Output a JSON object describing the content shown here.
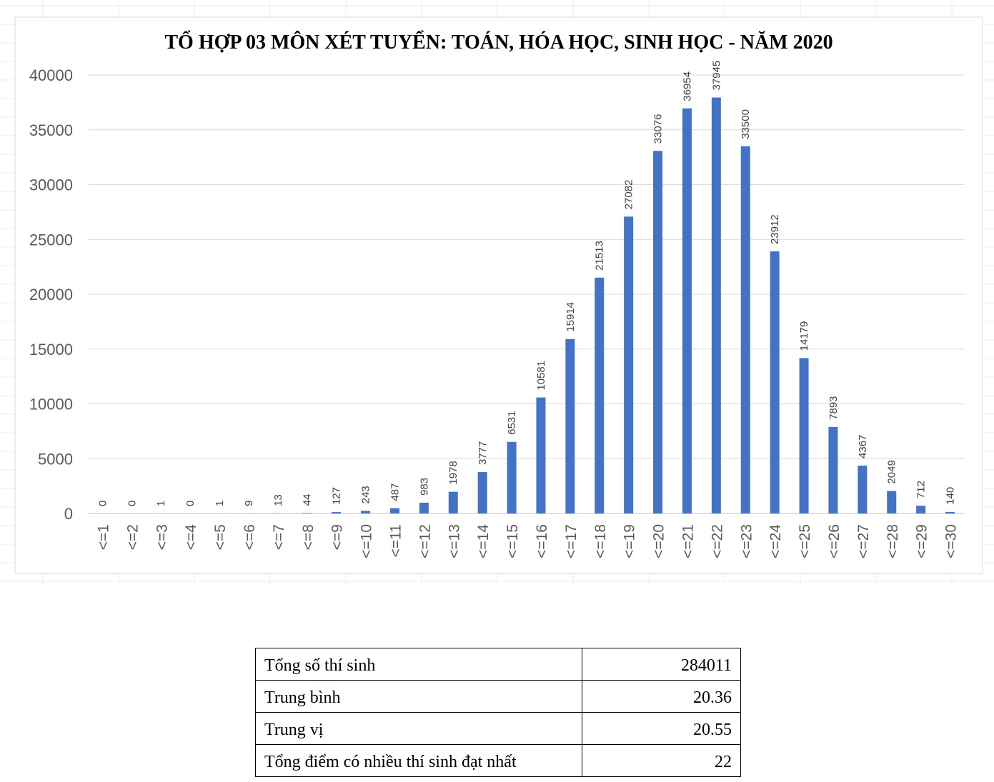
{
  "chart_data": {
    "type": "bar",
    "title": "TỔ HỢP 03 MÔN XÉT TUYỂN: TOÁN, HÓA HỌC, SINH HỌC - NĂM 2020",
    "xlabel": "",
    "ylabel": "",
    "categories": [
      "<=1",
      "<=2",
      "<=3",
      "<=4",
      "<=5",
      "<=6",
      "<=7",
      "<=8",
      "<=9",
      "<=10",
      "<=11",
      "<=12",
      "<=13",
      "<=14",
      "<=15",
      "<=16",
      "<=17",
      "<=18",
      "<=19",
      "<=20",
      "<=21",
      "<=22",
      "<=23",
      "<=24",
      "<=25",
      "<=26",
      "<=27",
      "<=28",
      "<=29",
      "<=30"
    ],
    "values": [
      0,
      0,
      1,
      0,
      1,
      9,
      13,
      44,
      127,
      243,
      487,
      983,
      1978,
      3777,
      6531,
      10581,
      15914,
      21513,
      27082,
      33076,
      36954,
      37945,
      33500,
      23912,
      14179,
      7893,
      4367,
      2049,
      712,
      140
    ],
    "ylim": [
      0,
      40000
    ],
    "yticks": [
      0,
      5000,
      10000,
      15000,
      20000,
      25000,
      30000,
      35000,
      40000
    ],
    "grid": true,
    "legend": "none",
    "bar_color": "#4472C4",
    "data_labels": "rotated"
  },
  "stats": {
    "rows": [
      {
        "label": "Tổng số thí sinh",
        "value": "284011"
      },
      {
        "label": "Trung bình",
        "value": "20.36"
      },
      {
        "label": "Trung vị",
        "value": "20.55"
      },
      {
        "label": "Tổng điểm có nhiều thí sinh đạt nhất",
        "value": "22"
      }
    ]
  }
}
